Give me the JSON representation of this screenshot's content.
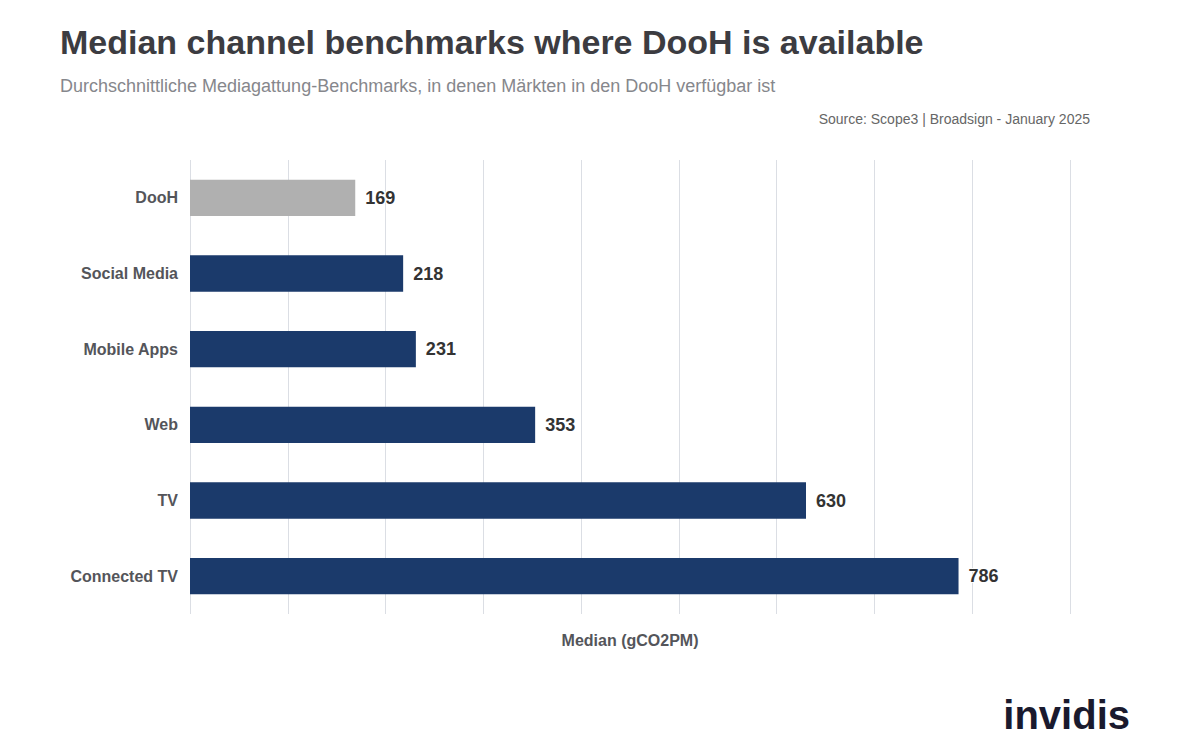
{
  "chart_data": {
    "type": "bar",
    "orientation": "horizontal",
    "title": "Median channel benchmarks where DooH is available",
    "subtitle": "Durchschnittliche Mediagattung-Benchmarks, in denen Märkten in den DooH verfügbar ist",
    "xlabel": "Median (gCO2PM)",
    "categories": [
      "DooH",
      "Social Media",
      "Mobile Apps",
      "Web",
      "TV",
      "Connected TV"
    ],
    "values": [
      169,
      218,
      231,
      353,
      630,
      786
    ],
    "colors": [
      "#b0b0b0",
      "#1b3a6b",
      "#1b3a6b",
      "#1b3a6b",
      "#1b3a6b",
      "#1b3a6b"
    ],
    "xlim": [
      0,
      900
    ],
    "xticks": [
      0,
      100,
      200,
      300,
      400,
      500,
      600,
      700,
      800,
      900
    ],
    "grid": true,
    "data_labels": true,
    "tick_labels": "y",
    "annotations": [
      "Source: Scope3 | Broadsign - January 2025",
      "invidis"
    ]
  }
}
